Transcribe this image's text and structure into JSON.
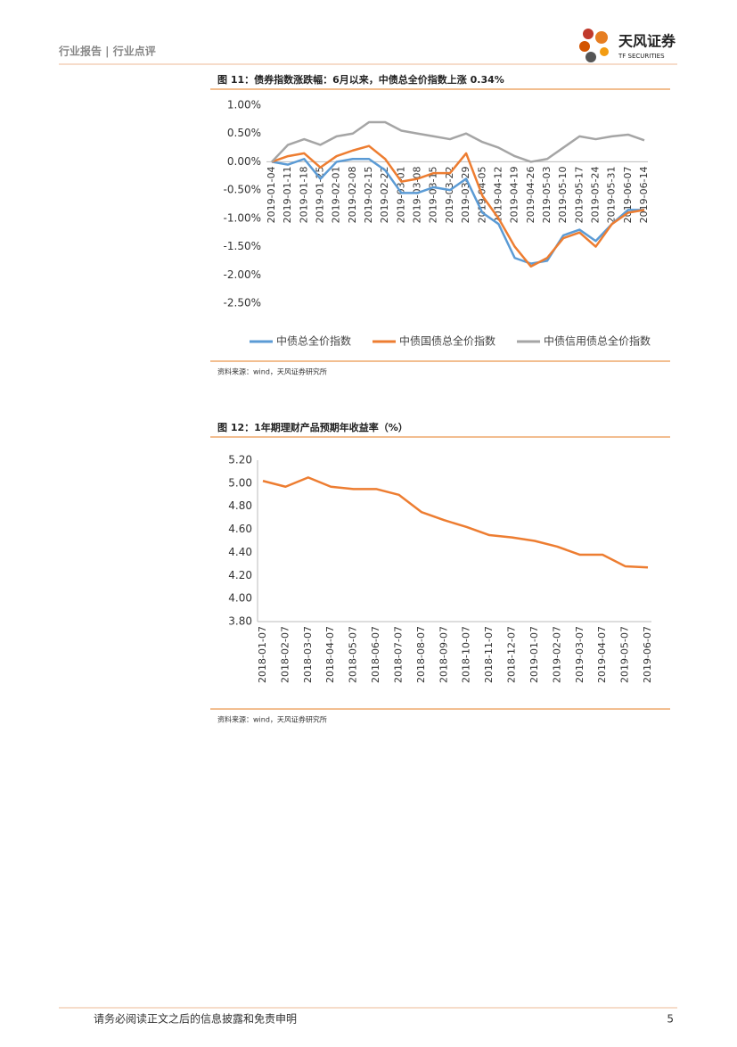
{
  "header": {
    "left": "行业报告 | 行业点评",
    "brand": "天风证券",
    "brand_en": "TF SECURITIES"
  },
  "chart_data": [
    {
      "type": "line",
      "title": "图 11：债券指数涨跌幅：6月以来，中债总全价指数上涨 0.34%",
      "categories": [
        "2019-01-04",
        "2019-01-11",
        "2019-01-18",
        "2019-01-25",
        "2019-02-01",
        "2019-02-08",
        "2019-02-15",
        "2019-02-22",
        "2019-03-01",
        "2019-03-08",
        "2019-03-15",
        "2019-03-22",
        "2019-03-29",
        "2019-04-05",
        "2019-04-12",
        "2019-04-19",
        "2019-04-26",
        "2019-05-03",
        "2019-05-10",
        "2019-05-17",
        "2019-05-24",
        "2019-05-31",
        "2019-06-07",
        "2019-06-14"
      ],
      "series": [
        {
          "name": "中债总全价指数",
          "color": "#5b9bd5",
          "values": [
            0,
            -0.05,
            0.05,
            -0.3,
            0,
            0.05,
            0.05,
            -0.15,
            -0.55,
            -0.55,
            -0.45,
            -0.5,
            -0.3,
            -0.9,
            -1.1,
            -1.7,
            -1.8,
            -1.75,
            -1.3,
            -1.2,
            -1.4,
            -1.1,
            -0.85,
            -0.85
          ]
        },
        {
          "name": "中债国债总全价指数",
          "color": "#ed7d31",
          "values": [
            0,
            0.1,
            0.15,
            -0.1,
            0.1,
            0.2,
            0.28,
            0.05,
            -0.35,
            -0.3,
            -0.2,
            -0.2,
            0.15,
            -0.6,
            -1.0,
            -1.5,
            -1.85,
            -1.7,
            -1.35,
            -1.25,
            -1.5,
            -1.1,
            -0.9,
            -0.85
          ]
        },
        {
          "name": "中债信用债总全价指数",
          "color": "#a5a5a5",
          "values": [
            0,
            0.3,
            0.4,
            0.3,
            0.45,
            0.5,
            0.7,
            0.7,
            0.55,
            0.5,
            0.45,
            0.4,
            0.5,
            0.35,
            0.25,
            0.1,
            0,
            0.05,
            0.25,
            0.45,
            0.4,
            0.45,
            0.48,
            0.38
          ]
        }
      ],
      "ylim": [
        -2.5,
        1.0
      ],
      "yticks": [
        {
          "value": 1.0,
          "label": "1.00%"
        },
        {
          "value": 0.5,
          "label": "0.50%"
        },
        {
          "value": 0,
          "label": "0.00%"
        },
        {
          "value": -0.5,
          "label": "-0.50%"
        },
        {
          "value": -1.0,
          "label": "-1.00%"
        },
        {
          "value": -1.5,
          "label": "-1.50%"
        },
        {
          "value": -2.0,
          "label": "-2.00%"
        },
        {
          "value": -2.5,
          "label": "-2.50%"
        }
      ],
      "legend": "bottom",
      "source": "资料来源：wind，天风证券研究所"
    },
    {
      "type": "line",
      "title": "图 12：1年期理财产品预期年收益率（%）",
      "categories": [
        "2018-01-07",
        "2018-02-07",
        "2018-03-07",
        "2018-04-07",
        "2018-05-07",
        "2018-06-07",
        "2018-07-07",
        "2018-08-07",
        "2018-09-07",
        "2018-10-07",
        "2018-11-07",
        "2018-12-07",
        "2019-01-07",
        "2019-02-07",
        "2019-03-07",
        "2019-04-07",
        "2019-05-07",
        "2019-06-07"
      ],
      "series": [
        {
          "color": "#ed7d31",
          "values": [
            5.02,
            4.97,
            5.05,
            4.97,
            4.95,
            4.95,
            4.9,
            4.75,
            4.68,
            4.62,
            4.55,
            4.53,
            4.5,
            4.45,
            4.38,
            4.38,
            4.28,
            4.27
          ]
        }
      ],
      "ylim": [
        3.8,
        5.2
      ],
      "yticks": [
        {
          "value": 5.2,
          "label": "5.20"
        },
        {
          "value": 5.0,
          "label": "5.00"
        },
        {
          "value": 4.8,
          "label": "4.80"
        },
        {
          "value": 4.6,
          "label": "4.60"
        },
        {
          "value": 4.4,
          "label": "4.40"
        },
        {
          "value": 4.2,
          "label": "4.20"
        },
        {
          "value": 4.0,
          "label": "4.00"
        },
        {
          "value": 3.8,
          "label": "3.80"
        }
      ],
      "source": "资料来源：wind，天风证券研究所"
    }
  ],
  "footer": {
    "disclaimer": "请务必阅读正文之后的信息披露和免责申明",
    "page": "5"
  }
}
